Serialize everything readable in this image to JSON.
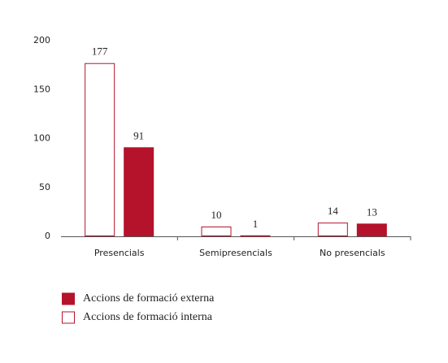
{
  "chart_data": {
    "type": "bar",
    "categories": [
      "Presencials",
      "Semipresencials",
      "No presencials"
    ],
    "series": [
      {
        "name": "Accions de formació interna",
        "color": "#ffffff",
        "stroke": "#b5132b",
        "values": [
          177,
          10,
          14
        ]
      },
      {
        "name": "Accions de formació externa",
        "color": "#b5132b",
        "stroke": "#b5132b",
        "values": [
          91,
          1,
          13
        ]
      }
    ],
    "ylim": [
      0,
      200
    ],
    "yticks": [
      0,
      50,
      100,
      150,
      200
    ],
    "grid": false
  }
}
